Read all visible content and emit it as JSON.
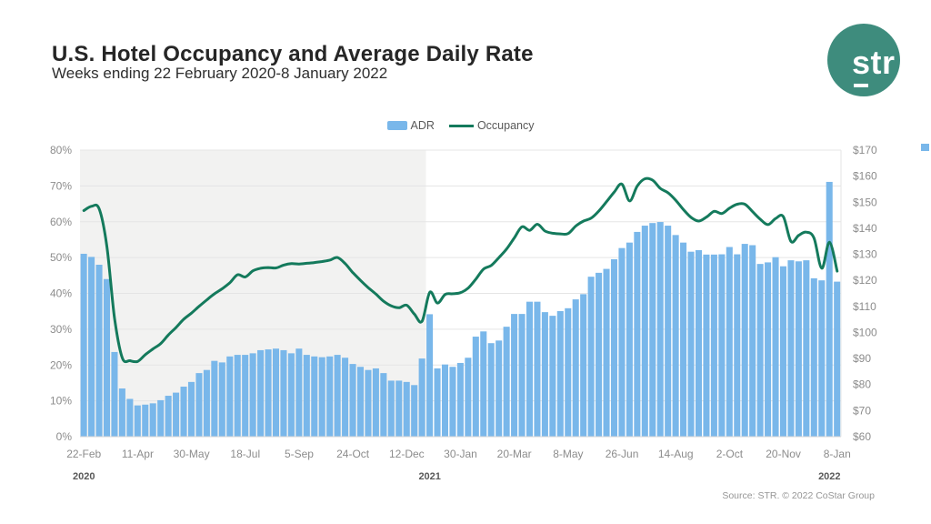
{
  "header": {
    "title": "U.S. Hotel Occupancy and Average Daily Rate",
    "subtitle": "Weeks ending 22 February 2020-8 January 2022",
    "logo_text": "str"
  },
  "legend": {
    "adr_label": "ADR",
    "occupancy_label": "Occupancy"
  },
  "footer": {
    "source": "Source: STR. © 2022 CoStar Group"
  },
  "colors": {
    "bar": "#79B7EA",
    "line": "#147A5C",
    "logo": "#3E8C7D",
    "shading_2020": "#F2F2F1",
    "grid": "#E5E5E5",
    "axis_line": "#D6D6D6",
    "axis_text": "#8C8C8C",
    "year_text": "#595959",
    "legend_text": "#595959"
  },
  "chart_data": {
    "type": "combo-bar-line",
    "title": "U.S. Hotel Occupancy and Average Daily Rate",
    "subtitle": "Weeks ending 22 February 2020-8 January 2022",
    "x_unit": "week_ending",
    "n_points": 99,
    "x_tick_every": 7,
    "x_tick_labels": [
      "22-Feb",
      "11-Apr",
      "30-May",
      "18-Jul",
      "5-Sep",
      "24-Oct",
      "12-Dec",
      "30-Jan",
      "20-Mar",
      "8-May",
      "26-Jun",
      "14-Aug",
      "2-Oct",
      "20-Nov",
      "8-Jan"
    ],
    "year_labels": [
      {
        "label": "2020",
        "week": 0
      },
      {
        "label": "2021",
        "week": 45
      },
      {
        "label": "2022",
        "week": 97
      }
    ],
    "shaded_region": {
      "from_week": 0,
      "to_week": 44,
      "label": "2020"
    },
    "left_axis": {
      "title": "Occupancy",
      "min": 0,
      "max": 80,
      "step": 10,
      "format": "percent",
      "tick_labels": [
        "0%",
        "10%",
        "20%",
        "30%",
        "40%",
        "50%",
        "60%",
        "70%",
        "80%"
      ]
    },
    "right_axis": {
      "title": "ADR",
      "min": 60,
      "max": 170,
      "step": 10,
      "format": "dollar",
      "tick_labels": [
        "$60",
        "$70",
        "$80",
        "$90",
        "$100",
        "$110",
        "$120",
        "$130",
        "$140",
        "$150",
        "$160",
        "$170"
      ]
    },
    "legend_position": "top-center",
    "grid": true,
    "series": [
      {
        "name": "ADR",
        "type": "bar",
        "axis": "right",
        "color": "#79B7EA",
        "values": [
          130.2,
          129,
          126,
          120.5,
          92.5,
          78.5,
          74.5,
          72,
          72.3,
          72.8,
          74,
          75.7,
          76.9,
          79.2,
          81,
          84.4,
          85.6,
          89.1,
          88.5,
          90.8,
          91.4,
          91.4,
          92,
          93.2,
          93.5,
          93.8,
          93.2,
          92,
          93.8,
          91.4,
          90.8,
          90.5,
          90.8,
          91.4,
          90.3,
          87.9,
          86.8,
          85.6,
          86.2,
          84.4,
          81.5,
          81.5,
          81,
          79.8,
          90,
          107,
          86.2,
          87.7,
          86.8,
          88.3,
          90.3,
          98.4,
          100.4,
          95.9,
          96.9,
          102.2,
          107.1,
          107.1,
          111.8,
          111.8,
          107.8,
          106.4,
          108.2,
          109.3,
          112.7,
          114.7,
          121.4,
          122.9,
          124.4,
          128.1,
          132.4,
          134.5,
          138.6,
          141,
          142,
          142.4,
          141,
          137.4,
          134.5,
          131,
          131.6,
          129.9,
          129.9,
          130,
          132.8,
          130,
          134,
          133.5,
          126.3,
          126.9,
          128.9,
          125.4,
          127.7,
          127.3,
          127.7,
          120.8,
          120,
          157.8,
          119.5
        ]
      },
      {
        "name": "Occupancy",
        "type": "line",
        "axis": "left",
        "color": "#147A5C",
        "values": [
          63.1,
          64.3,
          63.6,
          53,
          33,
          22,
          21.2,
          21,
          22.9,
          24.5,
          26,
          28.4,
          30.5,
          32.8,
          34.5,
          36.4,
          38.2,
          39.9,
          41.3,
          43,
          45.2,
          44.6,
          46.3,
          47,
          47.2,
          47.1,
          47.9,
          48.3,
          48.2,
          48.4,
          48.6,
          48.9,
          49.3,
          50,
          48.3,
          45.8,
          43.6,
          41.6,
          39.8,
          37.8,
          36.5,
          36,
          36.7,
          34.2,
          32.2,
          40.3,
          37.3,
          39.7,
          39.9,
          40.2,
          41.5,
          44,
          46.8,
          47.8,
          50,
          52.4,
          55.5,
          58.6,
          57.6,
          59.3,
          57.4,
          56.8,
          56.6,
          56.7,
          58.8,
          60.2,
          61,
          63,
          65.6,
          68.3,
          70.5,
          65.8,
          70,
          72,
          71.6,
          69.3,
          68.1,
          66,
          63.4,
          61.2,
          60.2,
          61.3,
          62.9,
          62.3,
          63.8,
          64.9,
          64.9,
          62.8,
          60.7,
          59.2,
          60.9,
          61.4,
          54.5,
          56.2,
          57.1,
          55.4,
          47,
          54.3,
          46.2
        ]
      }
    ]
  }
}
